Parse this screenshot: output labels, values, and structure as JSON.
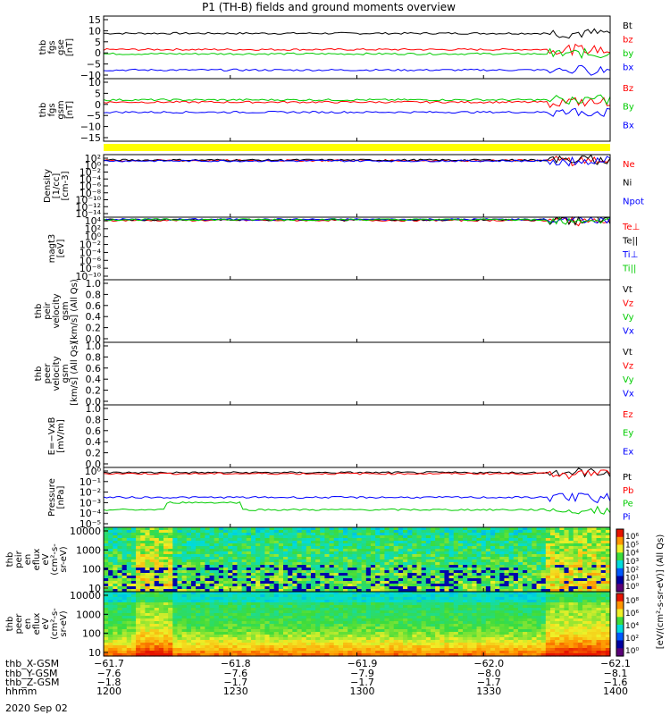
{
  "title": "P1 (TH-B) fields and ground moments overview",
  "date": "2020 Sep 02",
  "colors": {
    "black": "#000000",
    "red": "#ff0000",
    "green": "#00cc00",
    "blue": "#0000ff",
    "yellow": "#ffff00"
  },
  "chart_data": [
    {
      "type": "line",
      "name": "fgs_gse",
      "ylabel_lines": [
        "thb",
        "fgs",
        "gse",
        "[nT]"
      ],
      "yticks": [
        "15",
        "10",
        "5",
        "0",
        "−5",
        "−10"
      ],
      "ylim": [
        -13,
        16
      ],
      "series": [
        {
          "name": "Bt",
          "color": "black",
          "level": 8
        },
        {
          "name": "bz",
          "color": "red",
          "level": 0.5
        },
        {
          "name": "by",
          "color": "green",
          "level": -1.5
        },
        {
          "name": "bx",
          "color": "blue",
          "level": -9
        }
      ]
    },
    {
      "type": "line",
      "name": "fgs_gsm",
      "ylabel_lines": [
        "thb",
        "fgs",
        "gsm",
        "[nT]"
      ],
      "yticks": [
        "10",
        "5",
        "0",
        "−5",
        "−10",
        "−15"
      ],
      "ylim": [
        -18,
        10
      ],
      "series": [
        {
          "name": "Bz",
          "color": "red",
          "level": -0.5
        },
        {
          "name": "By",
          "color": "green",
          "level": 0.5
        },
        {
          "name": "Bx",
          "color": "blue",
          "level": -5
        }
      ]
    },
    {
      "type": "line",
      "name": "density",
      "ylabel_lines": [
        "Density",
        "[1/cc]",
        "[cm-3]"
      ],
      "yticks": [
        "10²",
        "10⁰",
        "10⁻²",
        "10⁻⁴",
        "10⁻⁶",
        "10⁻⁸",
        "10⁻¹⁰",
        "10⁻¹²",
        "10⁻¹⁴"
      ],
      "ylim": [
        -14,
        2
      ],
      "series": [
        {
          "name": "Ne",
          "color": "red",
          "level": 0.5
        },
        {
          "name": "Ni",
          "color": "black",
          "level": 0.6
        },
        {
          "name": "Npot",
          "color": "blue",
          "level": 0.4
        }
      ]
    },
    {
      "type": "line",
      "name": "temperature",
      "ylabel_lines": [
        "magt3",
        "[eV]"
      ],
      "yticks": [
        "10⁴",
        "10²",
        "10⁰",
        "10⁻²",
        "10⁻⁴",
        "10⁻⁶",
        "10⁻⁸",
        "10⁻¹⁰"
      ],
      "ylim": [
        -10,
        4
      ],
      "series": [
        {
          "name": "Te⊥",
          "color": "red",
          "level": 3.3
        },
        {
          "name": "Te||",
          "color": "black",
          "level": 3.4
        },
        {
          "name": "Ti⊥",
          "color": "blue",
          "level": 3.5
        },
        {
          "name": "Ti||",
          "color": "green",
          "level": 3.45
        }
      ]
    },
    {
      "type": "line",
      "name": "peir_velocity",
      "ylabel_lines": [
        "thb",
        "peir",
        "velocity",
        "gsm",
        "[km/s] (All Qs)"
      ],
      "yticks": [
        "1.0",
        "0.8",
        "0.6",
        "0.4",
        "0.2",
        "0.0"
      ],
      "ylim": [
        0,
        1
      ],
      "series": [
        {
          "name": "Vt",
          "color": "black"
        },
        {
          "name": "Vz",
          "color": "red"
        },
        {
          "name": "Vy",
          "color": "green"
        },
        {
          "name": "Vx",
          "color": "blue"
        }
      ]
    },
    {
      "type": "line",
      "name": "peer_velocity",
      "ylabel_lines": [
        "thb",
        "peer",
        "velocity",
        "gsm",
        "[km/s] (All Qs)"
      ],
      "yticks": [
        "1.0",
        "0.8",
        "0.6",
        "0.4",
        "0.2",
        "0.0"
      ],
      "ylim": [
        0,
        1
      ],
      "series": [
        {
          "name": "Vt",
          "color": "black"
        },
        {
          "name": "Vz",
          "color": "red"
        },
        {
          "name": "Vy",
          "color": "green"
        },
        {
          "name": "Vx",
          "color": "blue"
        }
      ]
    },
    {
      "type": "line",
      "name": "efield",
      "ylabel_lines": [
        "E=−VxB",
        "[mV/m]"
      ],
      "yticks": [
        "1.0",
        "0.8",
        "0.6",
        "0.4",
        "0.2",
        "0.0"
      ],
      "ylim": [
        0,
        1
      ],
      "series": [
        {
          "name": "Ez",
          "color": "red"
        },
        {
          "name": "Ey",
          "color": "green"
        },
        {
          "name": "Ex",
          "color": "blue"
        }
      ]
    },
    {
      "type": "line",
      "name": "pressure",
      "ylabel_lines": [
        "Pressure",
        "[nPa]"
      ],
      "yticks": [
        "10⁰",
        "10⁻¹",
        "10⁻²",
        "10⁻³",
        "10⁻⁴",
        "10⁻⁵"
      ],
      "ylim": [
        -5.5,
        0.3
      ],
      "series": [
        {
          "name": "Pt",
          "color": "black",
          "level": -0.2
        },
        {
          "name": "Pb",
          "color": "red",
          "level": -0.3
        },
        {
          "name": "Pe",
          "color": "green",
          "level": -3.8
        },
        {
          "name": "Pi",
          "color": "blue",
          "level": -2.6
        }
      ]
    },
    {
      "type": "heatmap",
      "name": "peir_spectrogram",
      "ylabel_lines": [
        "thb",
        "peir",
        "en",
        "eflux",
        "eV",
        "(cm²-s-",
        "sr-eV)"
      ],
      "yticks": [
        "10000",
        "1000",
        "100",
        "10"
      ],
      "ylim": [
        5,
        20000
      ]
    },
    {
      "type": "heatmap",
      "name": "peer_spectrogram",
      "ylabel_lines": [
        "thb",
        "peer",
        "en",
        "eflux",
        "eV",
        "(cm²-s-",
        "sr-eV)"
      ],
      "yticks": [
        "10000",
        "1000",
        "100",
        "10"
      ],
      "ylim": [
        5,
        20000
      ]
    }
  ],
  "colorbar": {
    "label": "[eV/(cm²-s-sr-eV)] (All Qs)",
    "ticks_top": [
      "10⁶",
      "10⁵",
      "10⁴",
      "10³",
      "10²",
      "10¹",
      "10⁰"
    ],
    "ticks_bottom": [
      "10⁸",
      "10⁶",
      "10⁴",
      "10²",
      "10⁰"
    ]
  },
  "xaxis": {
    "row_labels": [
      "thb_X-GSM",
      "thb_Y-GSM",
      "thb_Z-GSM",
      "hhmm"
    ],
    "columns": [
      {
        "x": "−61.7",
        "y": "−7.6",
        "z": "−1.8",
        "t": "1200"
      },
      {
        "x": "−61.8",
        "y": "−7.6",
        "z": "−1.7",
        "t": "1230"
      },
      {
        "x": "−61.9",
        "y": "−7.9",
        "z": "−1.7",
        "t": "1300"
      },
      {
        "x": "−62.0",
        "y": "−8.0",
        "z": "−1.7",
        "t": "1330"
      },
      {
        "x": "−62.1",
        "y": "−8.1",
        "z": "−1.6",
        "t": "1400"
      }
    ]
  }
}
